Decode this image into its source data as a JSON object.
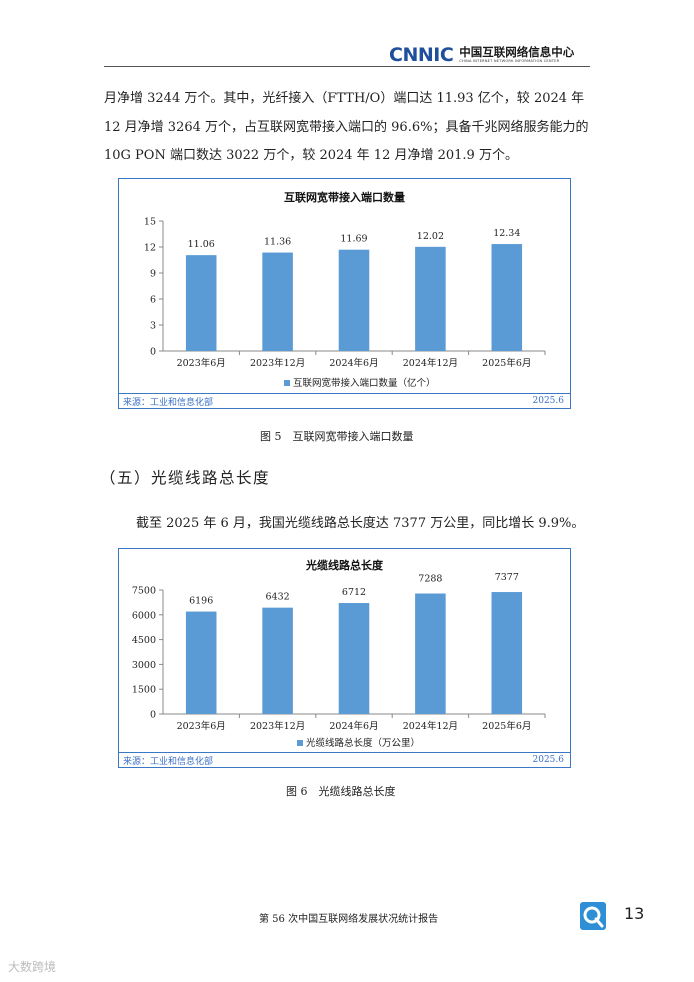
{
  "header": {
    "logo_mark": "CNNIC",
    "org_cn": "中国互联网络信息中心",
    "org_en": "CHINA INTERNET NETWORK INFORMATION CENTER"
  },
  "paragraph1": "月净增 3244 万个。其中，光纤接入（FTTH/O）端口达 11.93 亿个，较 2024 年 12 月净增 3264 万个，占互联网宽带接入端口的 96.6%；具备千兆网络服务能力的 10G PON 端口数达 3022 万个，较 2024 年 12 月净增 201.9 万个。",
  "figure5": {
    "caption": "图 5　互联网宽带接入端口数量",
    "source": "来源：工业和信息化部",
    "date": "2025.6"
  },
  "section_heading": "（五）光缆线路总长度",
  "paragraph2": "截至 2025 年 6 月，我国光缆线路总长度达 7377 万公里，同比增长 9.9%。",
  "figure6": {
    "caption": "图 6　光缆线路总长度",
    "source": "来源：工业和信息化部",
    "date": "2025.6"
  },
  "footer": {
    "report_title": "第 56 次中国互联网络发展状况统计报告",
    "page_number": "13"
  },
  "watermark": "大数跨境",
  "colors": {
    "bar": "#5b9bd5",
    "frame": "#3b78c4",
    "source_text": "#3b6fc9",
    "logo": "#1f4e9c"
  },
  "icons": {
    "page_icon": "magnifier-q-icon"
  },
  "chart_data": [
    {
      "type": "bar",
      "title": "互联网宽带接入端口数量",
      "categories": [
        "2023年6月",
        "2023年12月",
        "2024年6月",
        "2024年12月",
        "2025年6月"
      ],
      "series": [
        {
          "name": "互联网宽带接入端口数量（亿个）",
          "values": [
            11.06,
            11.36,
            11.69,
            12.02,
            12.34
          ]
        }
      ],
      "value_labels": [
        "11.06",
        "11.36",
        "11.69",
        "12.02",
        "12.34"
      ],
      "ylim": [
        0,
        15
      ],
      "yticks": [
        0,
        3,
        6,
        9,
        12,
        15
      ],
      "legend": "bottom",
      "grid": false
    },
    {
      "type": "bar",
      "title": "光缆线路总长度",
      "categories": [
        "2023年6月",
        "2023年12月",
        "2024年6月",
        "2024年12月",
        "2025年6月"
      ],
      "series": [
        {
          "name": "光缆线路总长度（万公里）",
          "values": [
            6196,
            6432,
            6712,
            7288,
            7377
          ]
        }
      ],
      "value_labels": [
        "6196",
        "6432",
        "6712",
        "7288",
        "7377"
      ],
      "ylim": [
        0,
        7500
      ],
      "yticks": [
        0,
        1500,
        3000,
        4500,
        6000,
        7500
      ],
      "legend": "bottom",
      "grid": false
    }
  ]
}
